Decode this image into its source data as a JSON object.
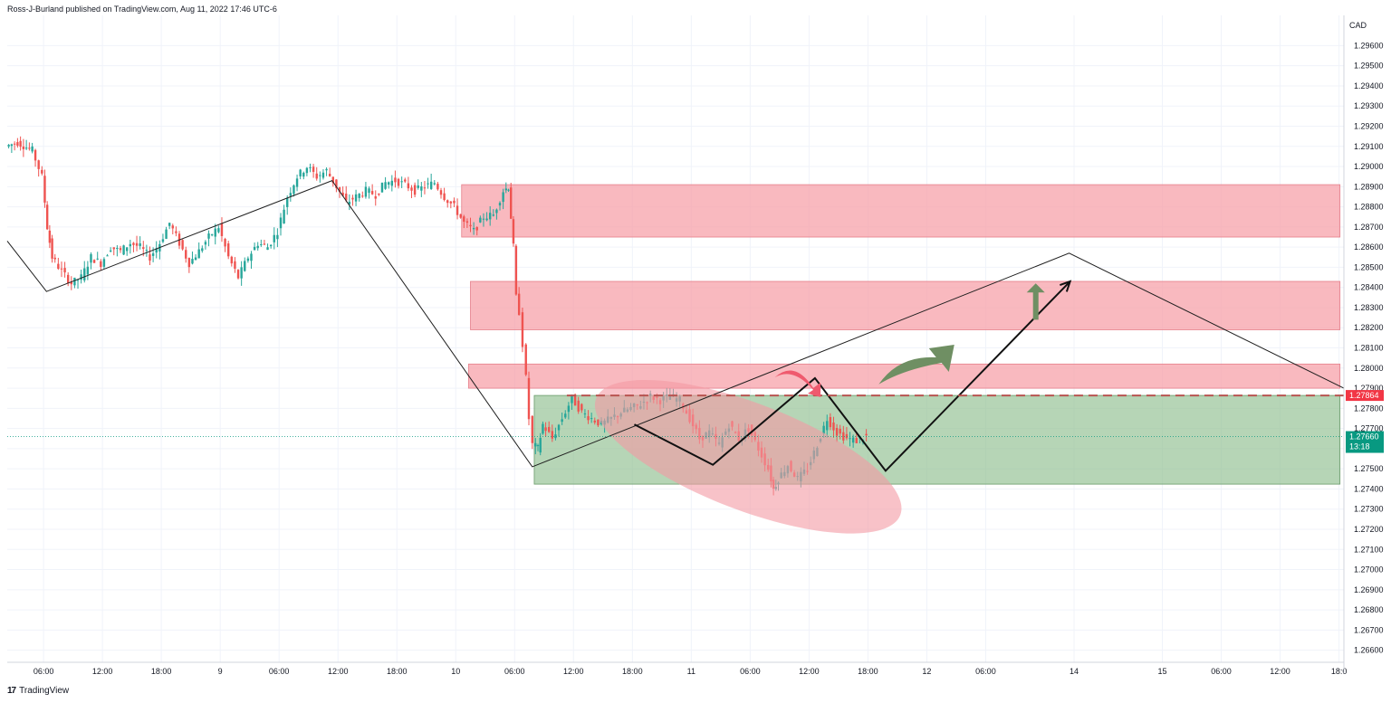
{
  "header": {
    "attribution": "Ross-J-Burland published on TradingView.com, Aug 11, 2022 17:46 UTC-6"
  },
  "footer": {
    "logo_text": "TradingView",
    "logo_mark": "17"
  },
  "colors": {
    "resistance_zone": "#f7a1a9",
    "support_zone": "#8fbf8f",
    "ellipse": "#f39aa3",
    "candle_up": "#26a69a",
    "candle_down": "#ef5350",
    "dashed_level": "#b85450",
    "arrow_green": "#6f8f63",
    "arrow_red": "#ef5a6e",
    "price_badge": "#089981",
    "level_badge": "#f23645"
  },
  "chart_data": {
    "type": "candlestick",
    "currency_label": "CAD",
    "y_ticks": [
      "1.29600",
      "1.29500",
      "1.29400",
      "1.29300",
      "1.29200",
      "1.29100",
      "1.29000",
      "1.28900",
      "1.28800",
      "1.28700",
      "1.28600",
      "1.28500",
      "1.28400",
      "1.28300",
      "1.28200",
      "1.28100",
      "1.28000",
      "1.27900",
      "1.27800",
      "1.27700",
      "1.27600",
      "1.27500",
      "1.27400",
      "1.27300",
      "1.27200",
      "1.27100",
      "1.27000",
      "1.26900",
      "1.26800",
      "1.26700",
      "1.26600"
    ],
    "x_ticks": [
      {
        "label": "06:00",
        "t": 6
      },
      {
        "label": "12:00",
        "t": 12
      },
      {
        "label": "18:00",
        "t": 18
      },
      {
        "label": "9",
        "t": 24
      },
      {
        "label": "06:00",
        "t": 30
      },
      {
        "label": "12:00",
        "t": 36
      },
      {
        "label": "18:00",
        "t": 42
      },
      {
        "label": "10",
        "t": 48
      },
      {
        "label": "06:00",
        "t": 54
      },
      {
        "label": "12:00",
        "t": 60
      },
      {
        "label": "18:00",
        "t": 66
      },
      {
        "label": "11",
        "t": 72
      },
      {
        "label": "06:00",
        "t": 78
      },
      {
        "label": "12:00",
        "t": 84
      },
      {
        "label": "18:00",
        "t": 90
      },
      {
        "label": "12",
        "t": 96
      },
      {
        "label": "06:00",
        "t": 102
      },
      {
        "label": "14",
        "t": 111
      },
      {
        "label": "15",
        "t": 120
      },
      {
        "label": "06:00",
        "t": 126
      },
      {
        "label": "12:00",
        "t": 132
      },
      {
        "label": "18:0",
        "t": 138
      }
    ],
    "ylim": [
      1.2654,
      1.2975
    ],
    "xlim": [
      2.3,
      138.5
    ],
    "last_price": {
      "value": 1.2766,
      "label": "1.27660",
      "countdown": "13:18"
    },
    "level_line": {
      "value": 1.27864,
      "label": "1.27864"
    },
    "price_path": [
      [
        2.3,
        1.291
      ],
      [
        3.5,
        1.2912
      ],
      [
        5,
        1.2908
      ],
      [
        6,
        1.2895
      ],
      [
        6.5,
        1.287
      ],
      [
        7,
        1.2855
      ],
      [
        8,
        1.2848
      ],
      [
        9,
        1.2842
      ],
      [
        10,
        1.2845
      ],
      [
        11,
        1.2855
      ],
      [
        12,
        1.2852
      ],
      [
        13,
        1.286
      ],
      [
        14,
        1.2858
      ],
      [
        15,
        1.2862
      ],
      [
        16,
        1.286
      ],
      [
        17,
        1.2855
      ],
      [
        18,
        1.2862
      ],
      [
        19,
        1.2872
      ],
      [
        20,
        1.2862
      ],
      [
        21,
        1.2852
      ],
      [
        22,
        1.2858
      ],
      [
        23,
        1.2865
      ],
      [
        24,
        1.287
      ],
      [
        25,
        1.2855
      ],
      [
        26,
        1.2845
      ],
      [
        27,
        1.2855
      ],
      [
        28,
        1.2862
      ],
      [
        29,
        1.286
      ],
      [
        30,
        1.2868
      ],
      [
        31,
        1.2885
      ],
      [
        32,
        1.2895
      ],
      [
        33,
        1.29
      ],
      [
        34,
        1.2895
      ],
      [
        35,
        1.2898
      ],
      [
        36,
        1.289
      ],
      [
        37,
        1.2882
      ],
      [
        38,
        1.2885
      ],
      [
        39,
        1.2888
      ],
      [
        40,
        1.2886
      ],
      [
        41,
        1.2892
      ],
      [
        42,
        1.2893
      ],
      [
        43,
        1.2891
      ],
      [
        44,
        1.2888
      ],
      [
        45,
        1.289
      ],
      [
        46,
        1.2892
      ],
      [
        47,
        1.2885
      ],
      [
        48,
        1.288
      ],
      [
        49,
        1.2872
      ],
      [
        50,
        1.2868
      ],
      [
        51,
        1.2875
      ],
      [
        52,
        1.2876
      ],
      [
        53,
        1.2888
      ],
      [
        53.5,
        1.289
      ],
      [
        54,
        1.286
      ],
      [
        54.3,
        1.2835
      ],
      [
        54.6,
        1.2828
      ],
      [
        55,
        1.2812
      ],
      [
        55.3,
        1.2795
      ],
      [
        55.6,
        1.2775
      ],
      [
        56,
        1.2762
      ],
      [
        56.5,
        1.276
      ],
      [
        57,
        1.2772
      ],
      [
        58,
        1.2765
      ],
      [
        59,
        1.2775
      ],
      [
        60,
        1.2785
      ],
      [
        61,
        1.2778
      ],
      [
        62,
        1.2775
      ],
      [
        63,
        1.2772
      ],
      [
        64,
        1.2775
      ],
      [
        65,
        1.2778
      ],
      [
        66,
        1.278
      ],
      [
        67,
        1.2782
      ],
      [
        68,
        1.2786
      ],
      [
        69,
        1.2784
      ],
      [
        70,
        1.2786
      ],
      [
        71,
        1.2784
      ],
      [
        72,
        1.2775
      ],
      [
        73,
        1.2765
      ],
      [
        74,
        1.2768
      ],
      [
        75,
        1.2762
      ],
      [
        76,
        1.2772
      ],
      [
        77,
        1.2765
      ],
      [
        78,
        1.277
      ],
      [
        79,
        1.276
      ],
      [
        80,
        1.275
      ],
      [
        80.5,
        1.274
      ],
      [
        81,
        1.2745
      ],
      [
        82,
        1.2752
      ],
      [
        83,
        1.2745
      ],
      [
        84,
        1.275
      ],
      [
        85,
        1.2762
      ],
      [
        86,
        1.2775
      ],
      [
        87,
        1.2768
      ],
      [
        88,
        1.2765
      ],
      [
        89,
        1.2764
      ],
      [
        90,
        1.2766
      ]
    ],
    "resistance_zones": [
      {
        "t1": 48.6,
        "t2": 138.1,
        "top": 1.2891,
        "bottom": 1.2865
      },
      {
        "t1": 49.5,
        "t2": 138.1,
        "top": 1.2843,
        "bottom": 1.2819
      },
      {
        "t1": 49.3,
        "t2": 138.1,
        "top": 1.2802,
        "bottom": 1.279
      }
    ],
    "support_zone": {
      "t1": 56.0,
      "t2": 138.1,
      "top": 1.27864,
      "bottom": 1.27424
    },
    "ellipse": {
      "t": 77.8,
      "value": 1.2756,
      "rx_t": 16.6,
      "ry_value": 0.00265,
      "rotate": 21
    },
    "pattern_lines": [
      [
        [
          2.3,
          1.2863
        ],
        [
          6.3,
          1.2838
        ],
        [
          35.4,
          1.2893
        ],
        [
          55.8,
          1.2751
        ],
        [
          110.5,
          1.2857
        ],
        [
          138.5,
          1.279
        ]
      ]
    ],
    "bold_pattern": [
      [
        66.2,
        1.2772
      ],
      [
        74.2,
        1.2752
      ],
      [
        84.6,
        1.2795
      ],
      [
        91.8,
        1.2749
      ],
      [
        110.6,
        1.2843
      ]
    ],
    "green_arrows": [
      {
        "kind": "curve",
        "t1": 91.1,
        "v1": 1.28,
        "t2": 98.8,
        "v2": 1.2808
      },
      {
        "kind": "up",
        "t": 107.1,
        "v1": 1.2824,
        "v2": 1.2842
      }
    ],
    "red_arrow": {
      "t1": 80.5,
      "v1": 1.2798,
      "t2": 84.8,
      "v2": 1.2791
    }
  }
}
